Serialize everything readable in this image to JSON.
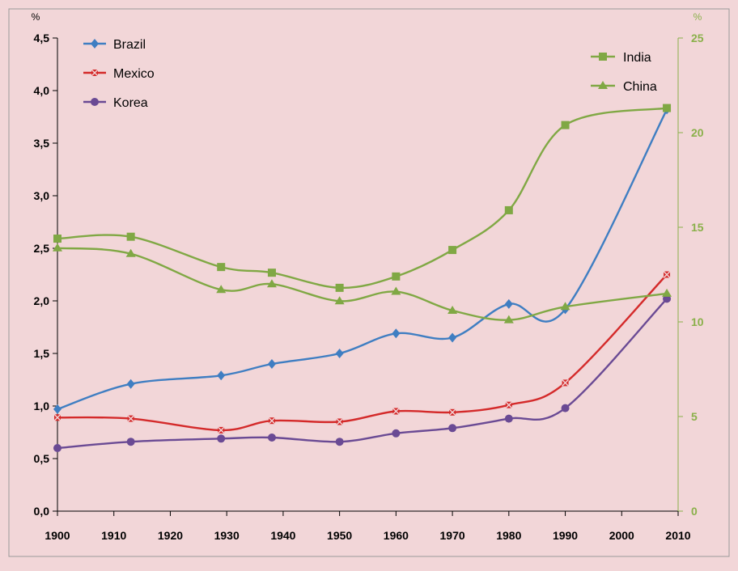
{
  "chart_data": {
    "type": "line",
    "x": [
      1900,
      1910,
      1920,
      1930,
      1940,
      1950,
      1960,
      1970,
      1980,
      1990,
      2000,
      2010
    ],
    "x_ticks": [
      "1900",
      "1910",
      "1920",
      "1930",
      "1940",
      "1950",
      "1960",
      "1970",
      "1980",
      "1990",
      "2000",
      "2010"
    ],
    "left_axis": {
      "unit": "%",
      "ylim": [
        0,
        4.5
      ],
      "ticks": [
        0,
        0.5,
        1.0,
        1.5,
        2.0,
        2.5,
        3.0,
        3.5,
        4.0,
        4.5
      ],
      "tick_labels": [
        "0,0",
        "0,5",
        "1,0",
        "1,5",
        "2,0",
        "2,5",
        "3,0",
        "3,5",
        "4,0",
        "4,5"
      ]
    },
    "right_axis": {
      "unit": "%",
      "ylim": [
        0,
        25
      ],
      "ticks": [
        0,
        5,
        10,
        15,
        20,
        25
      ],
      "tick_labels": [
        "0",
        "5",
        "10",
        "15",
        "20",
        "25"
      ]
    },
    "series": [
      {
        "name": "Brazil",
        "axis": "left",
        "color": "#3f7ec2",
        "marker": "diamond",
        "x": [
          1900,
          1913,
          1929,
          1938,
          1950,
          1960,
          1970,
          1980,
          1990,
          2008
        ],
        "values": [
          0.97,
          1.21,
          1.29,
          1.4,
          1.5,
          1.69,
          1.65,
          1.97,
          1.92,
          3.82
        ]
      },
      {
        "name": "Mexico",
        "axis": "left",
        "color": "#d42a2a",
        "marker": "x",
        "x": [
          1900,
          1913,
          1929,
          1938,
          1950,
          1960,
          1970,
          1980,
          1990,
          2008
        ],
        "values": [
          0.89,
          0.88,
          0.77,
          0.86,
          0.85,
          0.95,
          0.94,
          1.01,
          1.22,
          2.25
        ]
      },
      {
        "name": "Korea",
        "axis": "left",
        "color": "#6a4a94",
        "marker": "circle",
        "x": [
          1900,
          1913,
          1929,
          1938,
          1950,
          1960,
          1970,
          1980,
          1990,
          2008
        ],
        "values": [
          0.6,
          0.66,
          0.69,
          0.7,
          0.66,
          0.74,
          0.79,
          0.88,
          0.98,
          2.02
        ]
      },
      {
        "name": "India",
        "axis": "right",
        "color": "#80a844",
        "marker": "square",
        "x": [
          1900,
          1913,
          1929,
          1938,
          1950,
          1960,
          1970,
          1980,
          1990,
          2008
        ],
        "values": [
          14.4,
          14.5,
          12.9,
          12.6,
          11.8,
          12.4,
          13.8,
          15.9,
          20.4,
          21.3
        ]
      },
      {
        "name": "China",
        "axis": "right",
        "color": "#80a844",
        "marker": "triangle",
        "x": [
          1900,
          1913,
          1929,
          1938,
          1950,
          1960,
          1970,
          1980,
          1990,
          2008
        ],
        "values": [
          13.9,
          13.6,
          11.7,
          12.0,
          11.1,
          11.6,
          10.6,
          10.1,
          10.8,
          11.5
        ]
      }
    ],
    "legend_left": [
      "Brazil",
      "Mexico",
      "Korea"
    ],
    "legend_right": [
      "India",
      "China"
    ]
  }
}
